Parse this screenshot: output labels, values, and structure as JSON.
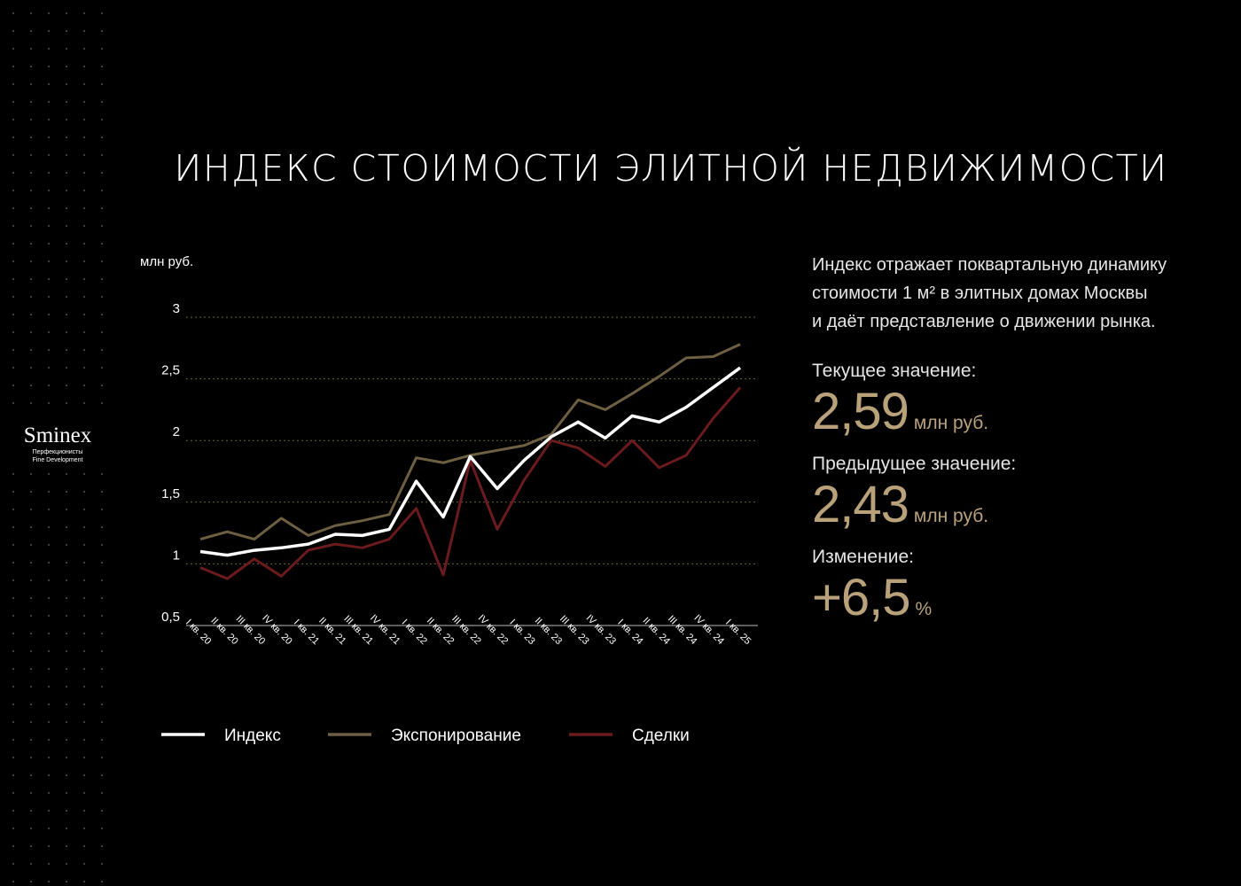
{
  "chart_data": {
    "type": "line",
    "title": "ИНДЕКС СТОИМОСТИ ЭЛИТНОЙ НЕДВИЖИМОСТИ",
    "y_label": "млн руб.",
    "categories": [
      "I кв. 20",
      "II кв. 20",
      "III кв. 20",
      "IV кв. 20",
      "I кв. 21",
      "II кв. 21",
      "III кв. 21",
      "IV кв. 21",
      "I кв. 22",
      "II кв. 22",
      "III кв. 22",
      "IV кв. 22",
      "I кв. 23",
      "II кв. 23",
      "III кв. 23",
      "IV кв. 23",
      "I кв. 24",
      "II кв. 24",
      "III кв. 24",
      "IV кв. 24",
      "I кв. 25"
    ],
    "series": [
      {
        "name": "Индекс",
        "color": "#ffffff",
        "values": [
          1.1,
          1.07,
          1.11,
          1.13,
          1.16,
          1.24,
          1.23,
          1.28,
          1.67,
          1.38,
          1.87,
          1.61,
          1.84,
          2.03,
          2.15,
          2.02,
          2.2,
          2.15,
          2.27,
          2.43,
          2.59
        ]
      },
      {
        "name": "Экспонирование",
        "color": "#6e5f43",
        "values": [
          1.2,
          1.26,
          1.2,
          1.37,
          1.23,
          1.31,
          1.35,
          1.4,
          1.86,
          1.82,
          1.88,
          1.92,
          1.96,
          2.05,
          2.33,
          2.25,
          2.38,
          2.52,
          2.67,
          2.68,
          2.78
        ]
      },
      {
        "name": "Сделки",
        "color": "#6b1a1e",
        "values": [
          0.97,
          0.88,
          1.04,
          0.9,
          1.11,
          1.16,
          1.13,
          1.2,
          1.45,
          0.91,
          1.84,
          1.28,
          1.68,
          2.0,
          1.94,
          1.79,
          2.0,
          1.78,
          1.88,
          2.18,
          2.43
        ]
      }
    ],
    "ylim": [
      0.5,
      3.0
    ],
    "yticks": [
      {
        "value": 0.5,
        "label": "0,5"
      },
      1,
      {
        "value": 1.5,
        "label": "1,5"
      },
      2,
      {
        "value": 2.5,
        "label": "2,5"
      },
      3
    ],
    "grid": true
  },
  "brand": {
    "name": "Sminex",
    "tagline1": "Перфекционисты",
    "tagline2": "Fine Development"
  },
  "panel": {
    "description": [
      "Индекс отражает поквартальную динамику",
      "стоимости 1 м² в элитных домах Москвы",
      "и даёт представление о движении рынка."
    ],
    "current_label": "Текущее значение:",
    "current_value": "2,59",
    "current_unit": "млн руб.",
    "previous_label": "Предыдущее значение:",
    "previous_value": "2,43",
    "previous_unit": "млн руб.",
    "change_label": "Изменение:",
    "change_value": "+6,5",
    "change_unit": "%"
  }
}
